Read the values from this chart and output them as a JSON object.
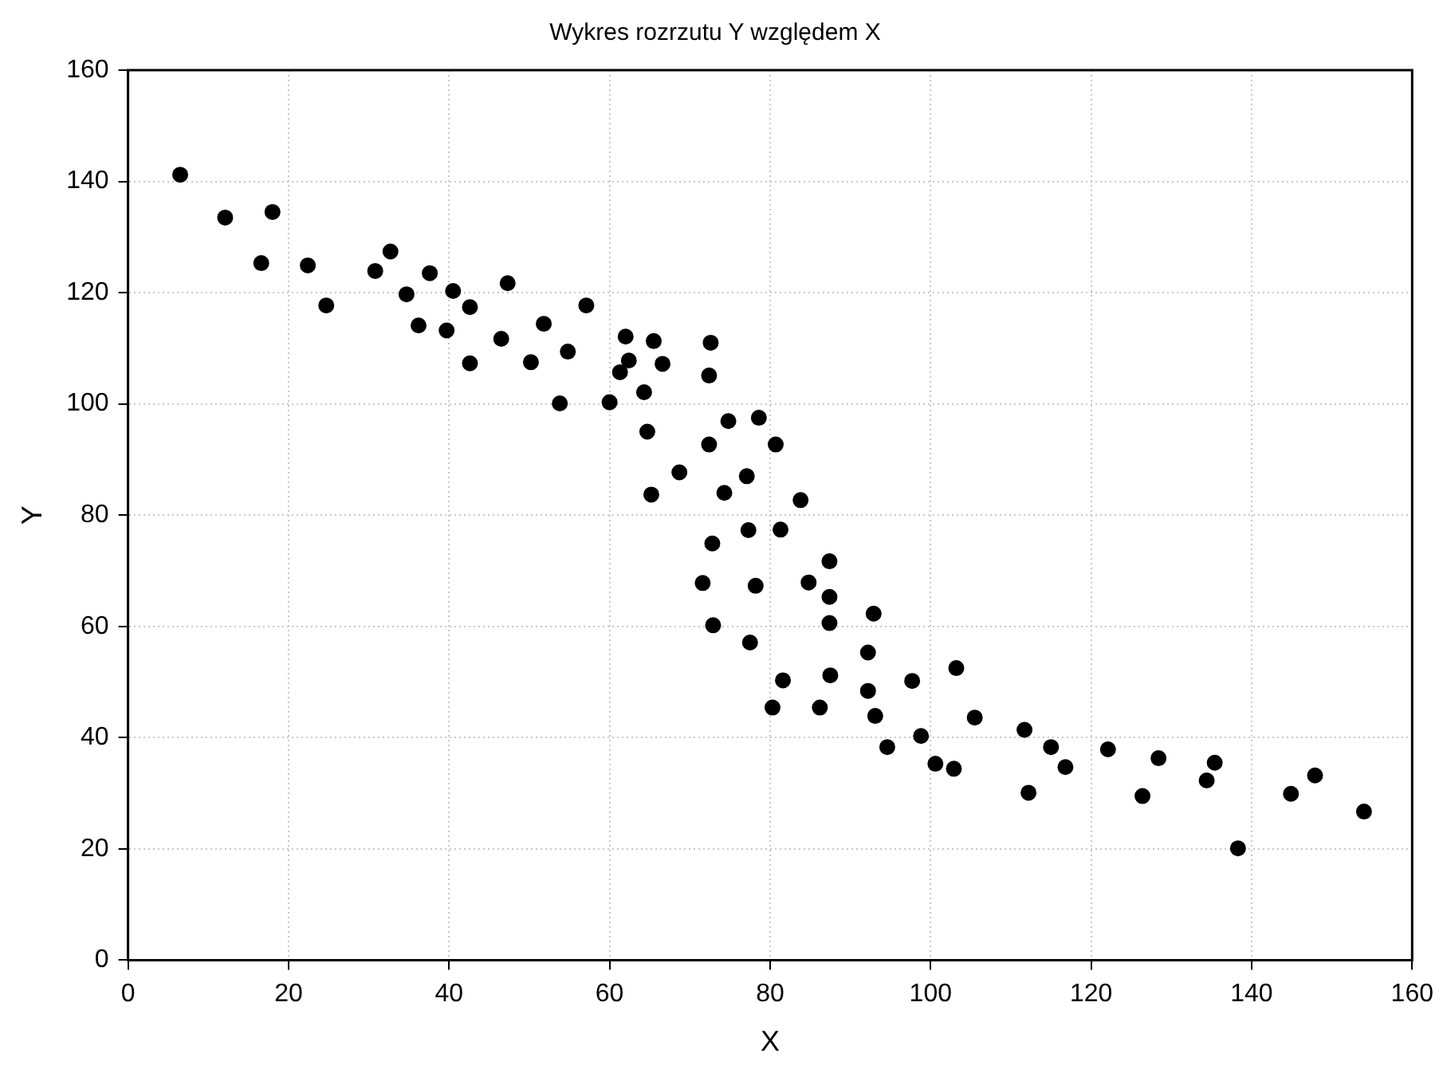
{
  "chart_data": {
    "type": "scatter",
    "title": "Wykres rozrzutu Y względem X",
    "xlabel": "X",
    "ylabel": "Y",
    "xlim": [
      0,
      160
    ],
    "xticks": [
      0,
      20,
      40,
      60,
      80,
      100,
      120,
      140,
      160
    ],
    "ylim": [
      0,
      160
    ],
    "yticks": [
      0,
      20,
      40,
      60,
      80,
      100,
      120,
      140,
      160
    ],
    "grid": true,
    "legend": false,
    "marker": "circle",
    "series": [
      {
        "color": "#000000",
        "x": [
          6.5,
          12.1,
          18.0,
          16.6,
          22.4,
          24.7,
          30.8,
          32.7,
          34.7,
          37.6,
          36.2,
          40.5,
          42.6,
          39.7,
          42.6,
          47.3,
          46.5,
          50.2,
          51.8,
          53.8,
          54.8,
          57.1,
          62.0,
          65.5,
          72.6,
          62.4,
          66.6,
          61.3,
          72.4,
          64.3,
          60.0,
          74.8,
          78.6,
          64.7,
          72.4,
          80.7,
          68.7,
          77.1,
          65.2,
          74.3,
          83.8,
          77.3,
          81.3,
          72.8,
          87.4,
          71.6,
          78.2,
          84.8,
          87.4,
          92.9,
          87.4,
          72.9,
          77.5,
          92.2,
          81.6,
          87.5,
          92.2,
          80.3,
          86.2,
          93.1,
          105.5,
          100.6,
          102.9,
          103.2,
          97.7,
          98.8,
          94.6,
          111.7,
          112.2,
          115.0,
          116.8,
          122.1,
          126.4,
          128.4,
          134.4,
          135.4,
          138.3,
          144.9,
          147.9,
          154.0
        ],
        "values": [
          141.2,
          133.5,
          134.5,
          125.3,
          124.9,
          117.7,
          123.9,
          127.4,
          119.7,
          123.5,
          114.1,
          120.3,
          117.4,
          113.2,
          107.3,
          121.7,
          111.7,
          107.5,
          114.4,
          100.1,
          109.4,
          117.7,
          112.1,
          111.3,
          111.0,
          107.8,
          107.2,
          105.7,
          105.1,
          102.1,
          100.3,
          96.9,
          97.5,
          95.0,
          92.7,
          92.7,
          87.7,
          87.0,
          83.7,
          84.0,
          82.7,
          77.3,
          77.4,
          74.9,
          71.7,
          67.8,
          67.3,
          67.9,
          65.3,
          62.3,
          60.6,
          60.2,
          57.1,
          55.3,
          50.3,
          51.2,
          48.4,
          45.4,
          45.4,
          43.9,
          43.6,
          35.3,
          34.4,
          52.5,
          50.2,
          40.3,
          38.3,
          41.4,
          30.1,
          38.3,
          34.7,
          37.9,
          29.5,
          36.3,
          32.3,
          35.5,
          20.1,
          29.9,
          33.2,
          26.7
        ]
      }
    ]
  }
}
